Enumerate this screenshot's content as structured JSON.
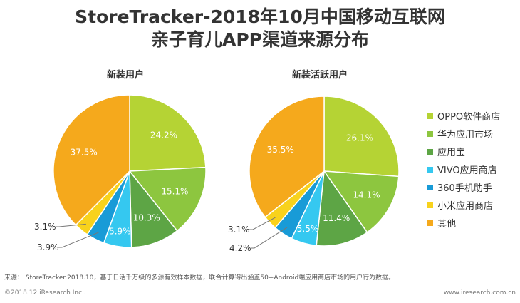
{
  "header": {
    "title_line1": "StoreTracker-2018年10月中国移动互联网",
    "title_line2": "亲子育儿APP渠道来源分布"
  },
  "chart_data": [
    {
      "type": "pie",
      "title": "新装用户",
      "categories": [
        "OPPO软件商店",
        "华为应用市场",
        "应用宝",
        "VIVO应用商店",
        "360手机助手",
        "小米应用商店",
        "其他"
      ],
      "values": [
        24.2,
        15.1,
        10.3,
        5.9,
        3.9,
        3.1,
        37.5
      ],
      "labels": [
        "24.2%",
        "15.1%",
        "10.3%",
        "5.9%",
        "3.9%",
        "3.1%",
        "37.5%"
      ]
    },
    {
      "type": "pie",
      "title": "新装活跃用户",
      "categories": [
        "OPPO软件商店",
        "华为应用市场",
        "应用宝",
        "VIVO应用商店",
        "360手机助手",
        "小米应用商店",
        "其他"
      ],
      "values": [
        26.1,
        14.1,
        11.4,
        5.5,
        4.2,
        3.1,
        35.5
      ],
      "labels": [
        "26.1%",
        "14.1%",
        "11.4%",
        "5.5%",
        "4.2%",
        "3.1%",
        "35.5%"
      ]
    }
  ],
  "legend": [
    {
      "label": "OPPO软件商店",
      "color": "#b5d334"
    },
    {
      "label": "华为应用市场",
      "color": "#8dc63f"
    },
    {
      "label": "应用宝",
      "color": "#5da545"
    },
    {
      "label": "VIVO应用商店",
      "color": "#35c8f0"
    },
    {
      "label": "360手机助手",
      "color": "#189bd7"
    },
    {
      "label": "小米应用商店",
      "color": "#f8d21c"
    },
    {
      "label": "其他",
      "color": "#f5a91c"
    }
  ],
  "footer": {
    "source": "来源： StoreTracker.2018.10，基于日活千万级的多源有效样本数据，联合计算得出涵盖50+Android端应用商店市场的用户行为数据。",
    "copyright": "©2018.12 iResearch Inc .",
    "website": "www.iresearch.com.cn"
  }
}
